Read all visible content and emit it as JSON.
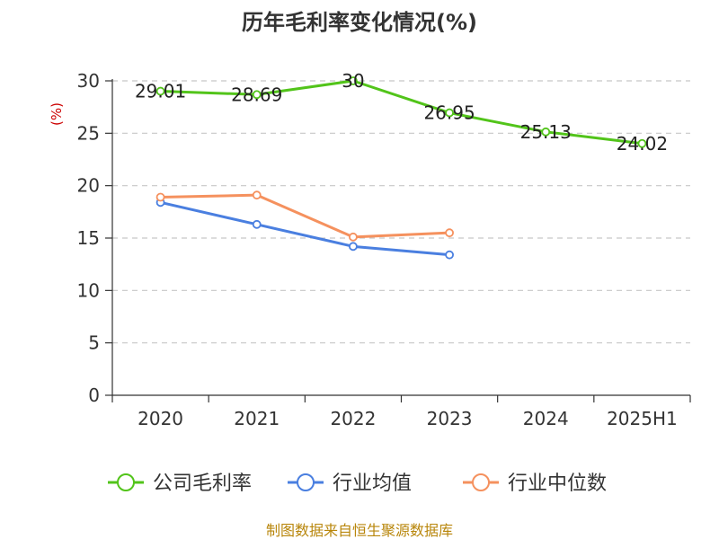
{
  "chart_data": {
    "type": "line",
    "title": "历年毛利率变化情况(%)",
    "ylabel": "(%)",
    "xlabel": "",
    "categories": [
      "2020",
      "2021",
      "2022",
      "2023",
      "2024",
      "2025H1"
    ],
    "ylim": [
      0,
      30
    ],
    "yticks": [
      0,
      5,
      10,
      15,
      20,
      25,
      30
    ],
    "grid": true,
    "legend_position": "bottom",
    "series": [
      {
        "name": "公司毛利率",
        "color": "#52c41a",
        "values": [
          29.01,
          28.69,
          30,
          26.95,
          25.13,
          24.02
        ],
        "labels": [
          "29.01",
          "28.69",
          "30",
          "26.95",
          "25.13",
          "24.02"
        ]
      },
      {
        "name": "行业均值",
        "color": "#4a7fe0",
        "values": [
          18.4,
          16.3,
          14.2,
          13.4,
          null,
          null
        ]
      },
      {
        "name": "行业中位数",
        "color": "#f5915e",
        "values": [
          18.9,
          19.1,
          15.1,
          15.5,
          null,
          null
        ]
      }
    ],
    "source": "制图数据来自恒生聚源数据库"
  }
}
